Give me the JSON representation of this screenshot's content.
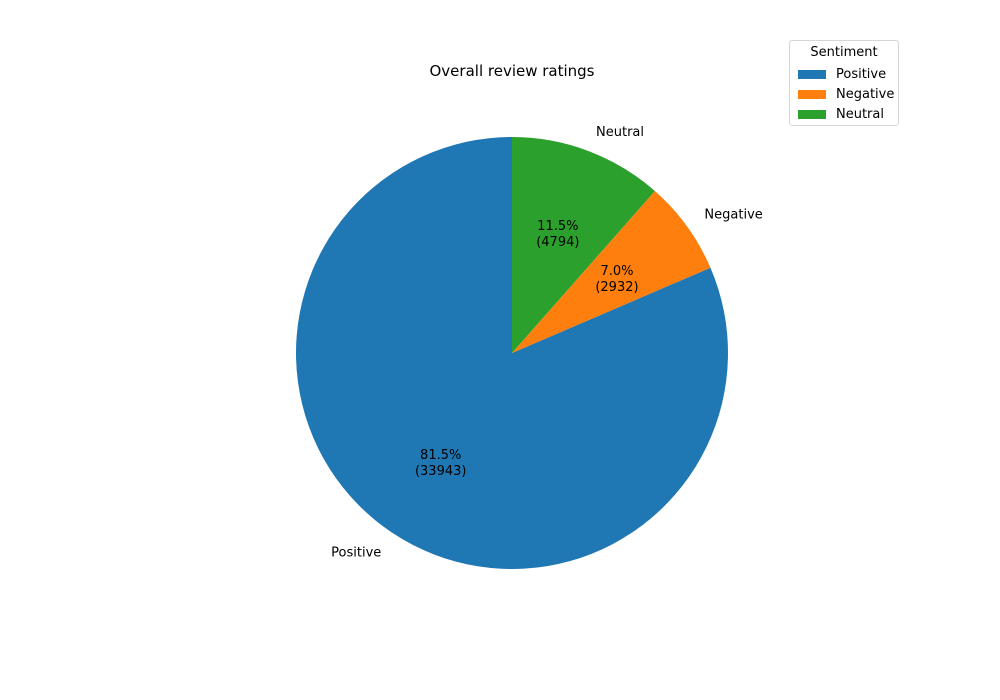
{
  "chart_data": {
    "type": "pie",
    "title": "Overall review ratings",
    "slices": [
      {
        "label": "Positive",
        "value": 33943,
        "percent_label": "81.5%",
        "count_label": "(33943)",
        "color": "#1f77b4"
      },
      {
        "label": "Negative",
        "value": 2932,
        "percent_label": "7.0%",
        "count_label": "(2932)",
        "color": "#ff7f0e"
      },
      {
        "label": "Neutral",
        "value": 4794,
        "percent_label": "11.5%",
        "count_label": "(4794)",
        "color": "#2ca02c"
      }
    ],
    "start_angle_deg": 90,
    "direction": "counterclockwise",
    "legend": {
      "title": "Sentiment",
      "placement": "top-right",
      "entries": [
        "Positive",
        "Negative",
        "Neutral"
      ]
    }
  }
}
